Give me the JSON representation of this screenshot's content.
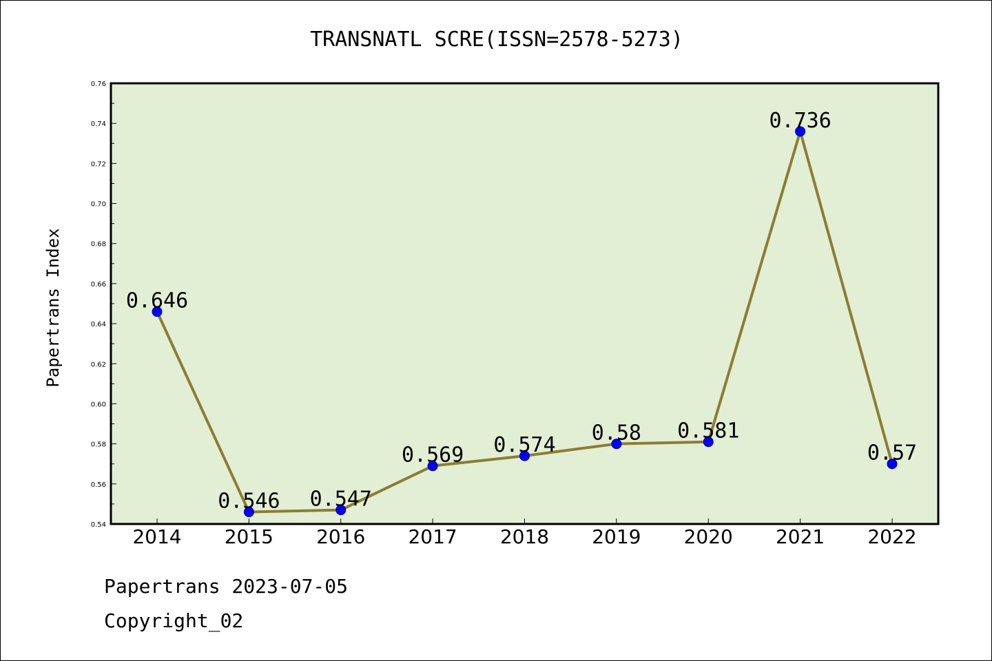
{
  "chart_data": {
    "type": "line",
    "title": "TRANSNATL SCRE(ISSN=2578-5273)",
    "ylabel": "Papertrans Index",
    "xlabel": "",
    "categories": [
      "2014",
      "2015",
      "2016",
      "2017",
      "2018",
      "2019",
      "2020",
      "2021",
      "2022"
    ],
    "values": [
      0.646,
      0.546,
      0.547,
      0.569,
      0.574,
      0.58,
      0.581,
      0.736,
      0.57
    ],
    "value_labels": [
      "0.646",
      "0.546",
      "0.547",
      "0.569",
      "0.574",
      "0.58",
      "0.581",
      "0.736",
      "0.57"
    ],
    "ylim": [
      0.54,
      0.76
    ],
    "yticks": [
      "0.54",
      "0.56",
      "0.58",
      "0.60",
      "0.62",
      "0.64",
      "0.66",
      "0.68",
      "0.70",
      "0.72",
      "0.74",
      "0.76"
    ],
    "grid": false,
    "colors": {
      "plot_bg": "#e2efd5",
      "line": "#8b7d35",
      "marker": "#0000ff"
    }
  },
  "footer": {
    "line1": "Papertrans 2023-07-05",
    "line2": "Copyright_02"
  }
}
